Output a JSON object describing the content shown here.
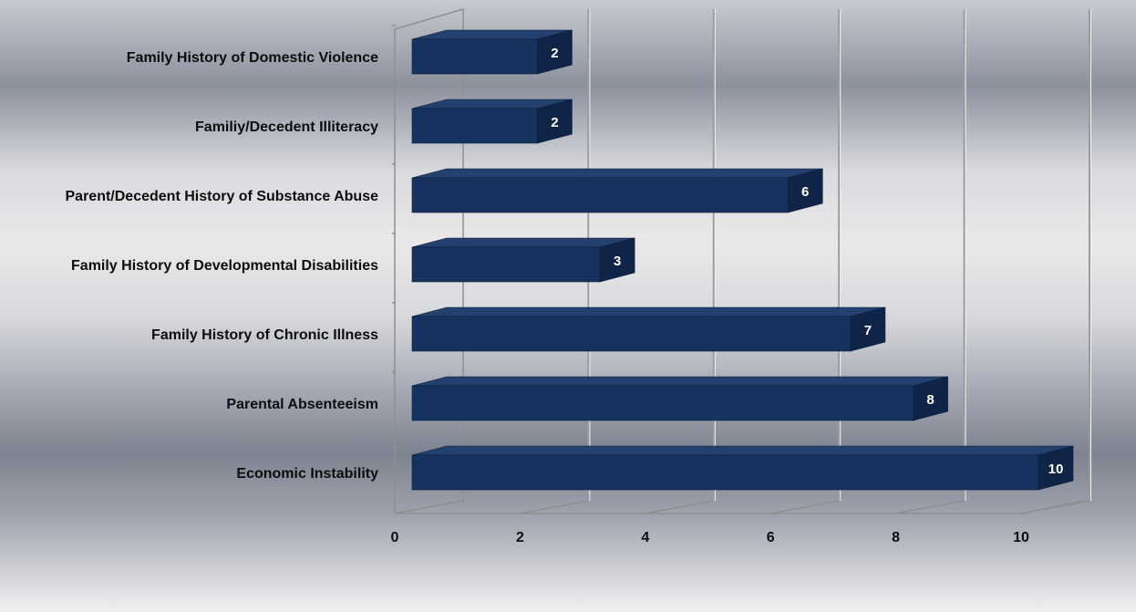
{
  "chart_data": {
    "type": "bar",
    "orientation": "horizontal",
    "style": "3d",
    "title": "",
    "xlabel": "",
    "ylabel": "",
    "categories": [
      "Family History of Domestic Violence",
      "Familiy/Decedent Illiteracy",
      "Parent/Decedent History of Substance Abuse",
      "Family History of Developmental Disabilities",
      "Family History of Chronic Illness",
      "Parental Absenteeism",
      "Economic Instability"
    ],
    "values": [
      2,
      2,
      6,
      3,
      7,
      8,
      10
    ],
    "value_labels": [
      "2",
      "2",
      "6",
      "3",
      "7",
      "8",
      "10"
    ],
    "xlim": [
      0,
      10
    ],
    "xticks": [
      0,
      2,
      4,
      6,
      8,
      10
    ],
    "xtick_labels": [
      "0",
      "2",
      "4",
      "6",
      "8",
      "10"
    ],
    "grid": true,
    "legend": "none",
    "colors": {
      "bar_front": "#16335f",
      "bar_top": "#23406e",
      "bar_side": "#0f2447",
      "label_text": "#ffffff"
    }
  }
}
